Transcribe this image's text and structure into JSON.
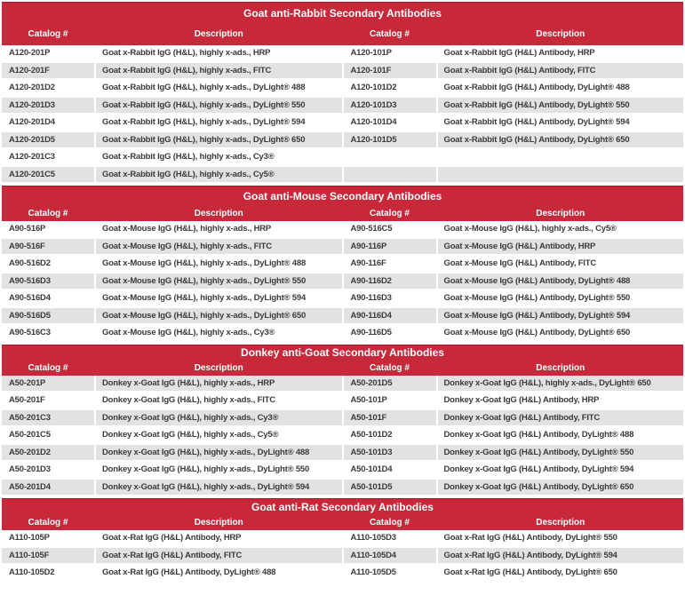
{
  "colors": {
    "header_red": "#C7293A",
    "header_border_dark_red": "#9B1A26",
    "row_stripe_gray": "#E3E2E2",
    "body_text": "#3B3B3B",
    "header_text": "#FFFFFF"
  },
  "table": {
    "column_headers": [
      "Catalog #",
      "Description",
      "Catalog #",
      "Description"
    ],
    "sections": [
      {
        "title": "Goat anti-Rabbit Secondary Antibodies",
        "first_row_shaded": false,
        "rows": [
          [
            "A120-201P",
            "Goat x-Rabbit IgG (H&L), highly x-ads., HRP",
            "A120-101P",
            "Goat x-Rabbit IgG (H&L) Antibody, HRP"
          ],
          [
            "A120-201F",
            "Goat x-Rabbit IgG (H&L), highly x-ads., FITC",
            "A120-101F",
            "Goat x-Rabbit IgG (H&L) Antibody, FITC"
          ],
          [
            "A120-201D2",
            "Goat x-Rabbit IgG (H&L), highly x-ads., DyLight® 488",
            "A120-101D2",
            "Goat x-Rabbit IgG (H&L) Antibody, DyLight® 488"
          ],
          [
            "A120-201D3",
            "Goat x-Rabbit IgG (H&L), highly x-ads., DyLight® 550",
            "A120-101D3",
            "Goat x-Rabbit IgG (H&L) Antibody, DyLight® 550"
          ],
          [
            "A120-201D4",
            "Goat x-Rabbit IgG (H&L), highly x-ads., DyLight® 594",
            "A120-101D4",
            "Goat x-Rabbit IgG (H&L) Antibody, DyLight® 594"
          ],
          [
            "A120-201D5",
            "Goat x-Rabbit IgG (H&L), highly x-ads., DyLight® 650",
            "A120-101D5",
            "Goat x-Rabbit IgG (H&L) Antibody, DyLight® 650"
          ],
          [
            "A120-201C3",
            "Goat x-Rabbit IgG (H&L), highly x-ads., Cy3®",
            "",
            ""
          ],
          [
            "A120-201C5",
            "Goat x-Rabbit IgG (H&L), highly x-ads., Cy5®",
            "",
            ""
          ]
        ]
      },
      {
        "title": "Goat anti-Mouse Secondary Antibodies",
        "first_row_shaded": false,
        "rows": [
          [
            "A90-516P",
            "Goat x-Mouse IgG (H&L), highly x-ads., HRP",
            "A90-516C5",
            "Goat x-Mouse IgG (H&L), highly x-ads., Cy5®"
          ],
          [
            "A90-516F",
            "Goat x-Mouse IgG (H&L), highly x-ads., FITC",
            "A90-116P",
            "Goat x-Mouse IgG (H&L) Antibody, HRP"
          ],
          [
            "A90-516D2",
            "Goat x-Mouse IgG (H&L), highly x-ads., DyLight® 488",
            "A90-116F",
            "Goat x-Mouse IgG (H&L) Antibody, FITC"
          ],
          [
            "A90-516D3",
            "Goat x-Mouse IgG (H&L), highly x-ads., DyLight® 550",
            "A90-116D2",
            "Goat x-Mouse IgG (H&L) Antibody, DyLight® 488"
          ],
          [
            "A90-516D4",
            "Goat x-Mouse IgG (H&L), highly x-ads., DyLight® 594",
            "A90-116D3",
            "Goat x-Mouse IgG (H&L) Antibody, DyLight® 550"
          ],
          [
            "A90-516D5",
            "Goat x-Mouse IgG (H&L), highly x-ads., DyLight® 650",
            "A90-116D4",
            "Goat x-Mouse IgG (H&L) Antibody, DyLight® 594"
          ],
          [
            "A90-516C3",
            "Goat x-Mouse IgG (H&L), highly x-ads., Cy3®",
            "A90-116D5",
            "Goat x-Mouse IgG (H&L) Antibody, DyLight® 650"
          ]
        ]
      },
      {
        "title": "Donkey anti-Goat Secondary Antibodies",
        "first_row_shaded": true,
        "rows": [
          [
            "A50-201P",
            "Donkey x-Goat IgG (H&L), highly x-ads., HRP",
            "A50-201D5",
            "Donkey x-Goat IgG (H&L), highly x-ads., DyLight® 650"
          ],
          [
            "A50-201F",
            "Donkey x-Goat IgG (H&L), highly x-ads., FITC",
            "A50-101P",
            "Donkey x-Goat IgG (H&L) Antibody, HRP"
          ],
          [
            "A50-201C3",
            "Donkey x-Goat IgG (H&L), highly x-ads., Cy3®",
            "A50-101F",
            "Donkey x-Goat IgG (H&L) Antibody, FITC"
          ],
          [
            "A50-201C5",
            "Donkey x-Goat IgG (H&L), highly x-ads., Cy5®",
            "A50-101D2",
            "Donkey x-Goat IgG (H&L) Antibody, DyLight® 488"
          ],
          [
            "A50-201D2",
            "Donkey x-Goat IgG (H&L), highly x-ads., DyLight® 488",
            "A50-101D3",
            "Donkey x-Goat IgG (H&L) Antibody, DyLight® 550"
          ],
          [
            "A50-201D3",
            "Donkey x-Goat IgG (H&L), highly x-ads., DyLight® 550",
            "A50-101D4",
            "Donkey x-Goat IgG (H&L) Antibody, DyLight® 594"
          ],
          [
            "A50-201D4",
            "Donkey x-Goat IgG (H&L), highly x-ads., DyLight® 594",
            "A50-101D5",
            "Donkey x-Goat IgG (H&L) Antibody, DyLight® 650"
          ]
        ]
      },
      {
        "title": "Goat anti-Rat Secondary Antibodies",
        "first_row_shaded": false,
        "rows": [
          [
            "A110-105P",
            "Goat x-Rat IgG (H&L) Antibody, HRP",
            "A110-105D3",
            "Goat x-Rat IgG (H&L) Antibody, DyLight® 550"
          ],
          [
            "A110-105F",
            "Goat x-Rat IgG (H&L) Antibody, FITC",
            "A110-105D4",
            "Goat x-Rat IgG (H&L) Antibody, DyLight® 594"
          ],
          [
            "A110-105D2",
            "Goat x-Rat IgG (H&L) Antibody, DyLight® 488",
            "A110-105D5",
            "Goat x-Rat IgG (H&L) Antibody, DyLight® 650"
          ]
        ]
      }
    ]
  }
}
